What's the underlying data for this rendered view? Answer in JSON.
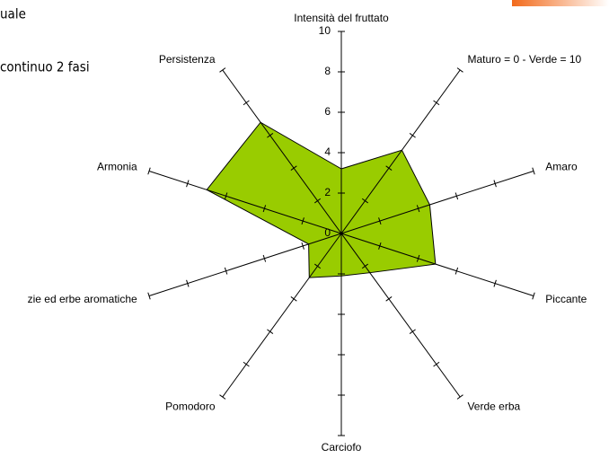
{
  "slide_text": [
    "uale",
    "continuo 2 fasi"
  ],
  "chart_data": {
    "type": "radar",
    "categories": [
      "Intensità del fruttato",
      "Maturo = 0 - Verde = 10",
      "Amaro",
      "Piccante",
      "Verde erba",
      "Carciofo",
      "Pomodoro",
      "zie ed erbe aromatiche",
      "Armonia",
      "Persistenza"
    ],
    "values": [
      3.2,
      5.1,
      4.6,
      4.9,
      2.4,
      2.1,
      2.7,
      1.7,
      7.0,
      6.8
    ],
    "color": "#99cc00",
    "ylim": [
      0,
      10
    ],
    "yticks": [
      0,
      2,
      4,
      6,
      8,
      10
    ]
  }
}
